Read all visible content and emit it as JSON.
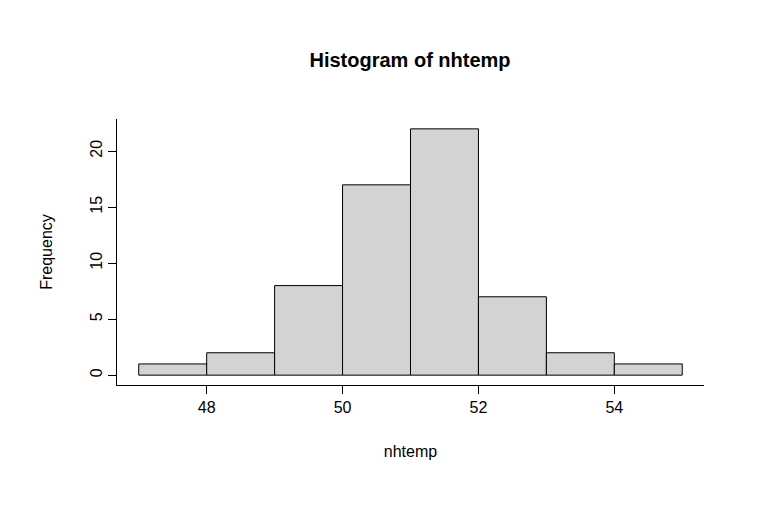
{
  "chart_data": {
    "type": "histogram",
    "title": "Histogram of nhtemp",
    "x_label": "nhtemp",
    "y_label": "Frequency",
    "bins": [
      47,
      48,
      49,
      50,
      51,
      52,
      53,
      54,
      55
    ],
    "values": [
      1,
      2,
      8,
      17,
      22,
      7,
      2,
      1
    ],
    "color": "#d3d3d3",
    "xlim": [
      46.68,
      55.32
    ],
    "ylim": [
      -0.88,
      22.88
    ],
    "xticks": [
      48,
      50,
      52,
      54
    ],
    "yticks": [
      0,
      5,
      10,
      15,
      20
    ],
    "grid": false
  }
}
